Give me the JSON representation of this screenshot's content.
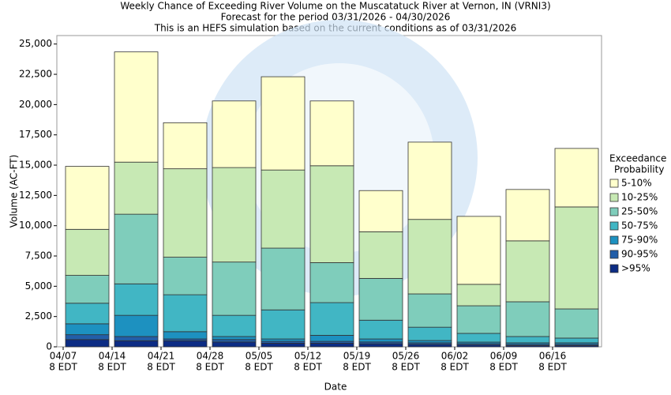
{
  "chart_data": {
    "type": "stacked_bar",
    "title": "Weekly Chance of Exceeding River Volume on the Muscatatuck River at Vernon, IN (VRNI3)",
    "subtitle": "Forecast for the period 03/31/2026 - 04/30/2026",
    "note": "This is an HEFS simulation based on the current conditions as of 03/31/2026",
    "x_label": "Date",
    "y_label": "Volume (AC-FT)",
    "categories": [
      "04/07",
      "04/14",
      "04/21",
      "04/28",
      "05/05",
      "05/12",
      "05/19",
      "05/26",
      "06/02",
      "06/09",
      "06/16"
    ],
    "category_sublabel": "8 EDT",
    "legend_title": [
      "Exceedance",
      "Probability"
    ],
    "series": [
      {
        "name": "5-10%",
        "color": "#ffffcc",
        "values": [
          5200,
          9100,
          3800,
          5500,
          7700,
          5350,
          3400,
          6380,
          5610,
          4240,
          4830
        ]
      },
      {
        "name": "10-25%",
        "color": "#c7e9b4",
        "values": [
          3800,
          4300,
          7300,
          7800,
          6450,
          8000,
          3850,
          6150,
          1770,
          5030,
          8420
        ]
      },
      {
        "name": "25-50%",
        "color": "#7fcdbb",
        "values": [
          2300,
          5750,
          3100,
          4400,
          5100,
          3300,
          3450,
          2750,
          2280,
          2870,
          2410
        ]
      },
      {
        "name": "50-75%",
        "color": "#41b6c4",
        "values": [
          1700,
          2600,
          3050,
          1750,
          2400,
          2700,
          1550,
          1100,
          720,
          520,
          390
        ]
      },
      {
        "name": "75-90%",
        "color": "#1d91c0",
        "values": [
          900,
          1750,
          600,
          250,
          200,
          500,
          250,
          190,
          130,
          130,
          130
        ]
      },
      {
        "name": "90-95%",
        "color": "#225ea8",
        "values": [
          400,
          350,
          150,
          200,
          150,
          150,
          150,
          130,
          110,
          100,
          100
        ]
      },
      {
        "name": ">95%",
        "color": "#0c2c84",
        "values": [
          600,
          500,
          500,
          400,
          300,
          300,
          250,
          200,
          150,
          100,
          100
        ]
      }
    ],
    "ylim": [
      0,
      25700
    ],
    "yticks": [
      0,
      {
        "value": 2500,
        "label": "2,500"
      },
      {
        "value": 5000,
        "label": "5,000"
      },
      {
        "value": 7500,
        "label": "7,500"
      },
      {
        "value": 10000,
        "label": "10,000"
      },
      {
        "value": 12500,
        "label": "12,500"
      },
      {
        "value": 15000,
        "label": "15,000"
      },
      {
        "value": 17500,
        "label": "17,500"
      },
      {
        "value": 20000,
        "label": "20,000"
      },
      {
        "value": 22500,
        "label": "22,500"
      },
      {
        "value": 25000,
        "label": "25,000"
      }
    ],
    "legend_position": "right"
  }
}
